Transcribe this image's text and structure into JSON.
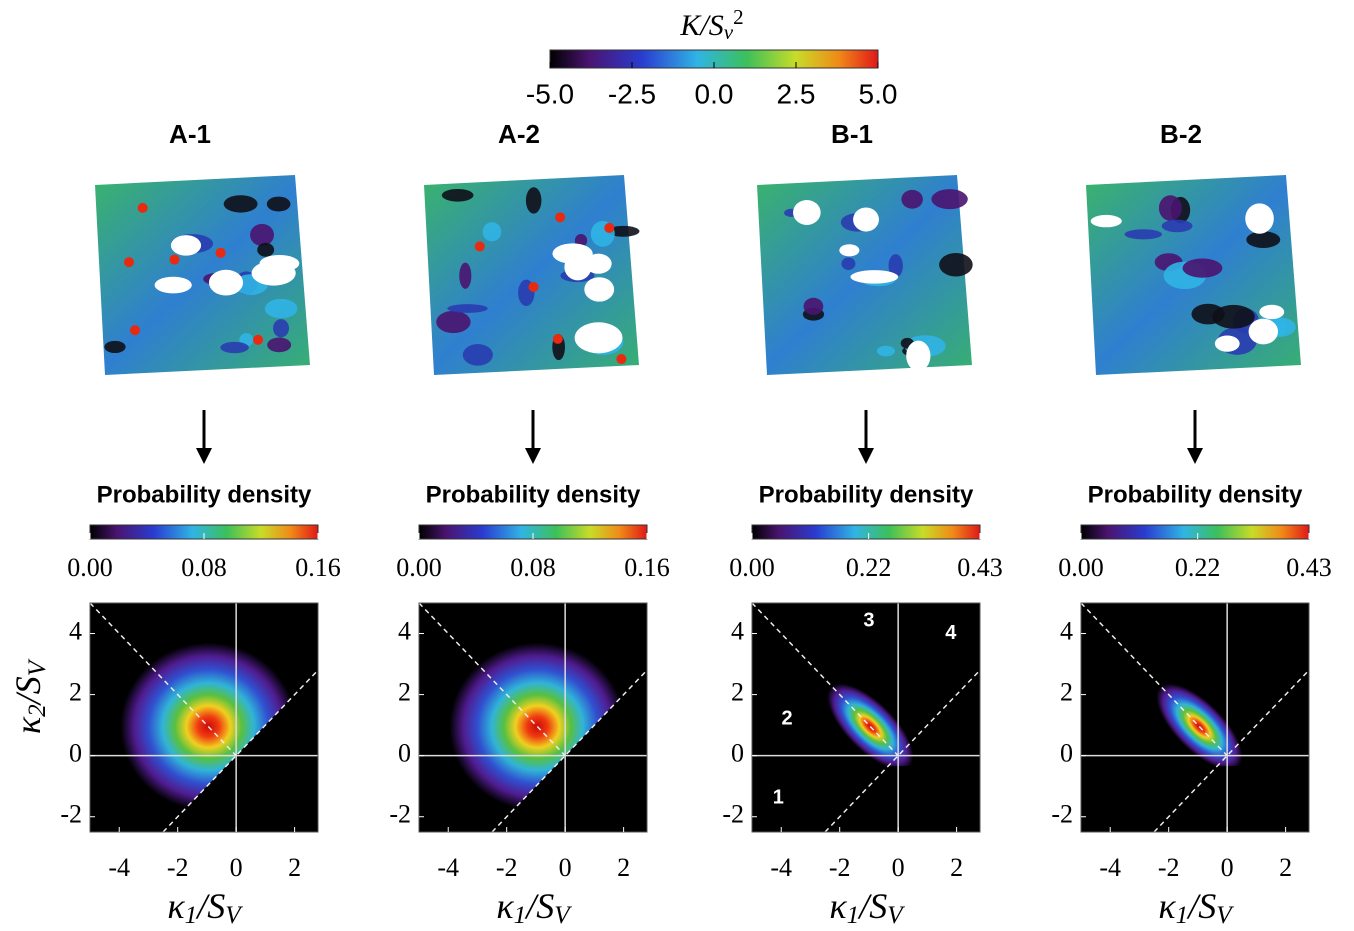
{
  "colorbar": {
    "title": [
      "K/S",
      "v",
      "2"
    ],
    "lim": [
      -5,
      5
    ],
    "ticks": [
      {
        "value": -5,
        "label": "-5.0"
      },
      -2.5,
      {
        "value": 0,
        "label": "0.0"
      },
      2.5,
      {
        "value": 5,
        "label": "5.0"
      }
    ]
  },
  "panels": [
    {
      "label": "A-1",
      "density": {
        "title": "Probability density",
        "lim": [
          0,
          0.16
        ],
        "ticks": [
          {
            "value": 0,
            "label": "0.00"
          },
          0.08,
          0.16
        ]
      },
      "plot": {
        "xlim": [
          -5,
          2.8
        ],
        "ylim": [
          -2.5,
          5
        ],
        "xticks": [
          -4,
          -2,
          0,
          2
        ],
        "yticks": [
          -2,
          0,
          2,
          4
        ],
        "xlabel": [
          "κ",
          "1",
          "/S",
          "V"
        ],
        "ylabel": [
          "κ",
          "2",
          "/S",
          "V"
        ],
        "shape": "round"
      }
    },
    {
      "label": "A-2",
      "density": {
        "title": "Probability density",
        "lim": [
          0,
          0.16
        ],
        "ticks": [
          {
            "value": 0,
            "label": "0.00"
          },
          0.08,
          0.16
        ]
      },
      "plot": {
        "xlim": [
          -5,
          2.8
        ],
        "ylim": [
          -2.5,
          5
        ],
        "xticks": [
          -4,
          -2,
          0,
          2
        ],
        "yticks": [
          -2,
          0,
          2,
          4
        ],
        "xlabel": [
          "κ",
          "1",
          "/S",
          "V"
        ],
        "shape": "round"
      }
    },
    {
      "label": "B-1",
      "density": {
        "title": "Probability density",
        "lim": [
          0,
          0.43
        ],
        "ticks": [
          {
            "value": 0,
            "label": "0.00"
          },
          0.22,
          0.43
        ]
      },
      "plot": {
        "xlim": [
          -5,
          2.8
        ],
        "ylim": [
          -2.5,
          5
        ],
        "xticks": [
          -4,
          -2,
          0,
          2
        ],
        "yticks": [
          -2,
          0,
          2,
          4
        ],
        "xlabel": [
          "κ",
          "1",
          "/S",
          "V"
        ],
        "shape": "elongated",
        "regions": [
          "1",
          "2",
          "3",
          "4"
        ]
      }
    },
    {
      "label": "B-2",
      "density": {
        "title": "Probability density",
        "lim": [
          0,
          0.43
        ],
        "ticks": [
          {
            "value": 0,
            "label": "0.00"
          },
          0.22,
          0.43
        ]
      },
      "plot": {
        "xlim": [
          -5,
          2.8
        ],
        "ylim": [
          -2.5,
          5
        ],
        "xticks": [
          -4,
          -2,
          0,
          2
        ],
        "yticks": [
          -2,
          0,
          2,
          4
        ],
        "xlabel": [
          "κ",
          "1",
          "/S",
          "V"
        ],
        "shape": "elongated"
      }
    }
  ]
}
